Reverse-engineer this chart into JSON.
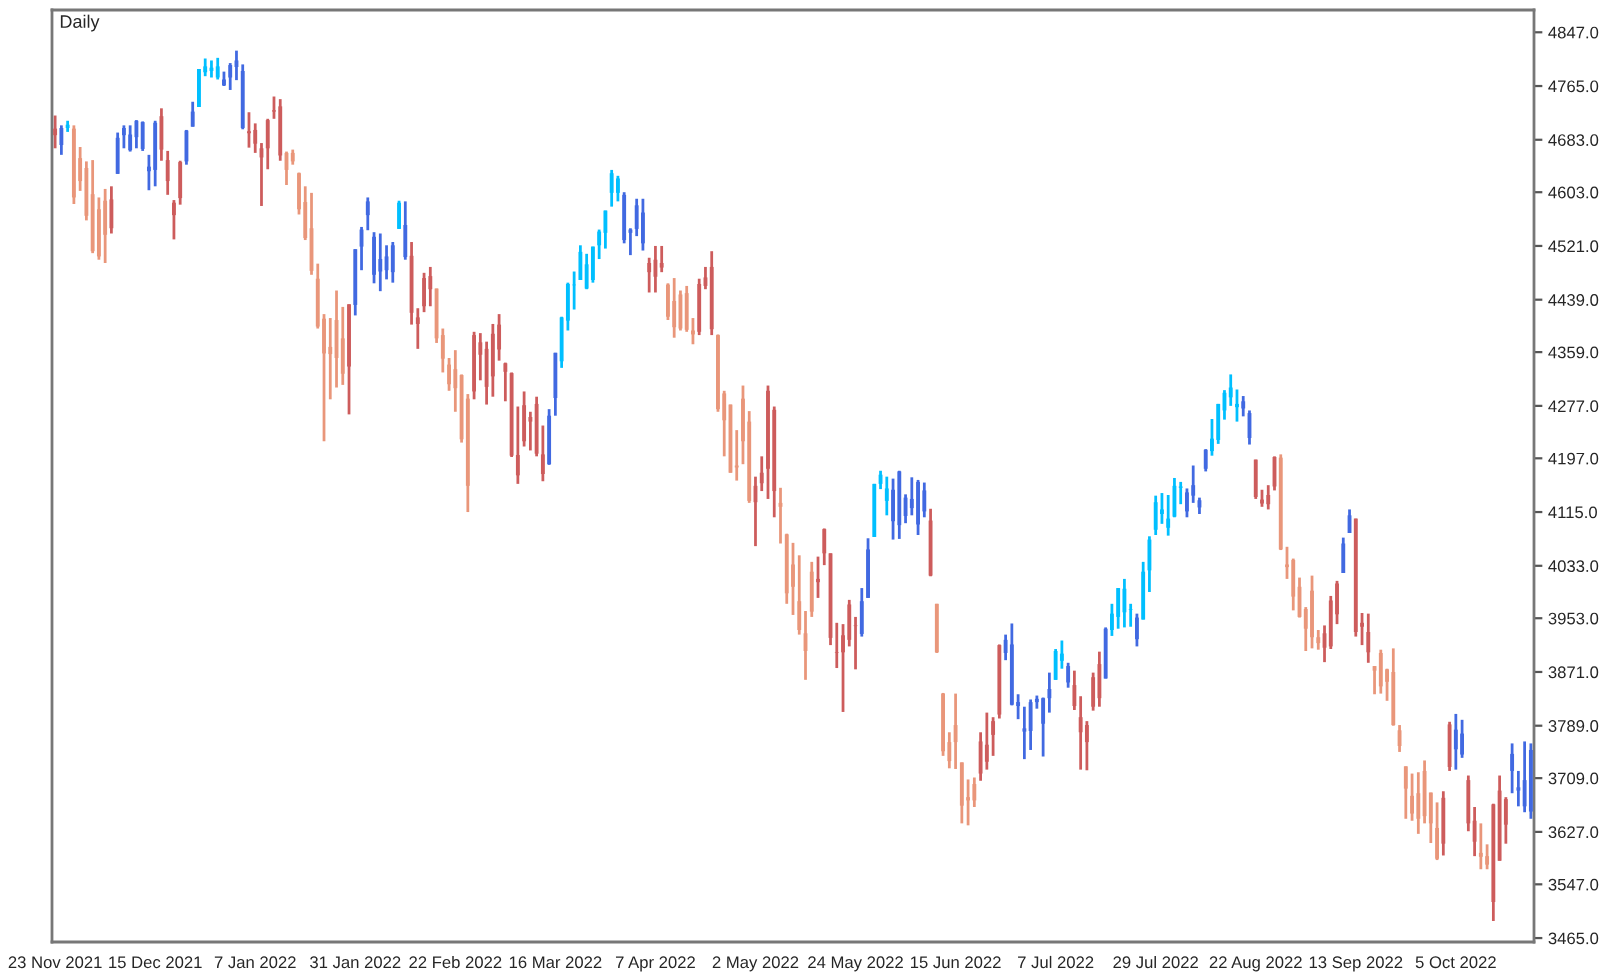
{
  "chart_data": {
    "type": "candlestick",
    "title": "Daily",
    "categories": [
      "23 Nov 2021",
      null,
      null,
      null,
      null,
      null,
      null,
      null,
      null,
      null,
      null,
      null,
      null,
      null,
      null,
      null,
      "15 Dec 2021",
      null,
      null,
      null,
      null,
      null,
      null,
      null,
      null,
      null,
      null,
      null,
      null,
      null,
      null,
      null,
      "7 Jan 2022",
      null,
      null,
      null,
      null,
      null,
      null,
      null,
      null,
      null,
      null,
      null,
      null,
      null,
      null,
      null,
      "31 Jan 2022",
      null,
      null,
      null,
      null,
      null,
      null,
      null,
      null,
      null,
      null,
      null,
      null,
      null,
      null,
      null,
      "22 Feb 2022",
      null,
      null,
      null,
      null,
      null,
      null,
      null,
      null,
      null,
      null,
      null,
      null,
      null,
      null,
      null,
      "16 Mar 2022",
      null,
      null,
      null,
      null,
      null,
      null,
      null,
      null,
      null,
      null,
      null,
      null,
      null,
      null,
      null,
      "7 Apr 2022",
      null,
      null,
      null,
      null,
      null,
      null,
      null,
      null,
      null,
      null,
      null,
      null,
      null,
      null,
      null,
      "2 May 2022",
      null,
      null,
      null,
      null,
      null,
      null,
      null,
      null,
      null,
      null,
      null,
      null,
      null,
      null,
      null,
      "24 May 2022",
      null,
      null,
      null,
      null,
      null,
      null,
      null,
      null,
      null,
      null,
      null,
      null,
      null,
      null,
      null,
      "15 Jun 2022",
      null,
      null,
      null,
      null,
      null,
      null,
      null,
      null,
      null,
      null,
      null,
      null,
      null,
      null,
      null,
      "7 Jul 2022",
      null,
      null,
      null,
      null,
      null,
      null,
      null,
      null,
      null,
      null,
      null,
      null,
      null,
      null,
      null,
      "29 Jul 2022",
      null,
      null,
      null,
      null,
      null,
      null,
      null,
      null,
      null,
      null,
      null,
      null,
      null,
      null,
      null,
      "22 Aug 2022",
      null,
      null,
      null,
      null,
      null,
      null,
      null,
      null,
      null,
      null,
      null,
      null,
      null,
      null,
      null,
      "13 Sep 2022",
      null,
      null,
      null,
      null,
      null,
      null,
      null,
      null,
      null,
      null,
      null,
      null,
      null,
      null,
      null,
      "5 Oct 2022",
      null,
      null,
      null,
      null,
      null,
      null,
      null,
      null,
      null,
      null,
      null,
      null
    ],
    "ohlc": [
      [
        4700,
        4720,
        4670,
        4690
      ],
      [
        4675,
        4705,
        4660,
        4701
      ],
      [
        4701,
        4712,
        4695,
        4706
      ],
      [
        4700,
        4705,
        4585,
        4595
      ],
      [
        4655,
        4672,
        4605,
        4620
      ],
      [
        4640,
        4650,
        4560,
        4567
      ],
      [
        4600,
        4652,
        4510,
        4513
      ],
      [
        4577,
        4595,
        4500,
        4505
      ],
      [
        4590,
        4608,
        4495,
        4538
      ],
      [
        4592,
        4612,
        4540,
        4548
      ],
      [
        4631,
        4694,
        4631,
        4686
      ],
      [
        4690,
        4705,
        4670,
        4701
      ],
      [
        4667,
        4705,
        4665,
        4691
      ],
      [
        4687,
        4713,
        4670,
        4712
      ],
      [
        4669,
        4711,
        4666,
        4710
      ],
      [
        4635,
        4660,
        4606,
        4642
      ],
      [
        4637,
        4712,
        4612,
        4709
      ],
      [
        4719,
        4731,
        4651,
        4668
      ],
      [
        4652,
        4666,
        4599,
        4620
      ],
      [
        4587,
        4591,
        4531,
        4568
      ],
      [
        4649,
        4651,
        4584,
        4594
      ],
      [
        4650,
        4698,
        4645,
        4697
      ],
      [
        4703,
        4741,
        4703,
        4726
      ],
      [
        4733,
        4791,
        4733,
        4791
      ],
      [
        4786,
        4807,
        4780,
        4795
      ],
      [
        4788,
        4804,
        4778,
        4793
      ],
      [
        4778,
        4808,
        4775,
        4795
      ],
      [
        4766,
        4787,
        4765,
        4775
      ],
      [
        4778,
        4800,
        4759,
        4797
      ],
      [
        4794,
        4819,
        4774,
        4804
      ],
      [
        4701,
        4798,
        4699,
        4788
      ],
      [
        4696,
        4725,
        4671,
        4693
      ],
      [
        4698,
        4708,
        4663,
        4677
      ],
      [
        4670,
        4678,
        4582,
        4656
      ],
      [
        4713,
        4715,
        4638,
        4670
      ],
      [
        4728,
        4749,
        4715,
        4726
      ],
      [
        4734,
        4745,
        4651,
        4659
      ],
      [
        4663,
        4665,
        4614,
        4637
      ],
      [
        4663,
        4668,
        4645,
        4650
      ],
      [
        4632,
        4633,
        4569,
        4577
      ],
      [
        4588,
        4612,
        4530,
        4533
      ],
      [
        4548,
        4602,
        4477,
        4483
      ],
      [
        4471,
        4494,
        4395,
        4398
      ],
      [
        4410,
        4417,
        4223,
        4357
      ],
      [
        4367,
        4411,
        4287,
        4356
      ],
      [
        4408,
        4453,
        4305,
        4350
      ],
      [
        4380,
        4428,
        4309,
        4326
      ],
      [
        4432,
        4432,
        4264,
        4337
      ],
      [
        4431,
        4516,
        4415,
        4516
      ],
      [
        4520,
        4550,
        4484,
        4546
      ],
      [
        4568,
        4595,
        4545,
        4589
      ],
      [
        4477,
        4542,
        4464,
        4535
      ],
      [
        4482,
        4540,
        4452,
        4501
      ],
      [
        4484,
        4522,
        4470,
        4505
      ],
      [
        4481,
        4527,
        4465,
        4522
      ],
      [
        4547,
        4590,
        4547,
        4587
      ],
      [
        4504,
        4589,
        4500,
        4553
      ],
      [
        4506,
        4527,
        4401,
        4419
      ],
      [
        4412,
        4426,
        4364,
        4402
      ],
      [
        4472,
        4480,
        4420,
        4429
      ],
      [
        4475,
        4489,
        4429,
        4455
      ],
      [
        4456,
        4456,
        4373,
        4380
      ],
      [
        4385,
        4395,
        4328,
        4349
      ],
      [
        4340,
        4350,
        4300,
        4310
      ],
      [
        4333,
        4362,
        4268,
        4304
      ],
      [
        4324,
        4325,
        4221,
        4226
      ],
      [
        4288,
        4295,
        4115,
        4155
      ],
      [
        4385,
        4390,
        4287,
        4299
      ],
      [
        4374,
        4388,
        4316,
        4355
      ],
      [
        4364,
        4375,
        4279,
        4306
      ],
      [
        4387,
        4402,
        4291,
        4322
      ],
      [
        4401,
        4417,
        4346,
        4363
      ],
      [
        4342,
        4343,
        4284,
        4329
      ],
      [
        4327,
        4328,
        4199,
        4201
      ],
      [
        4202,
        4276,
        4158,
        4171
      ],
      [
        4278,
        4299,
        4215,
        4223
      ],
      [
        4260,
        4268,
        4209,
        4253
      ],
      [
        4280,
        4291,
        4200,
        4204
      ],
      [
        4203,
        4247,
        4162,
        4173
      ],
      [
        4188,
        4272,
        4187,
        4262
      ],
      [
        4289,
        4358,
        4262,
        4358
      ],
      [
        4345,
        4413,
        4335,
        4412
      ],
      [
        4407,
        4465,
        4392,
        4463
      ],
      [
        4461,
        4482,
        4424,
        4462
      ],
      [
        4469,
        4522,
        4469,
        4512
      ],
      [
        4456,
        4509,
        4455,
        4493
      ],
      [
        4469,
        4520,
        4465,
        4520
      ],
      [
        4522,
        4546,
        4501,
        4543
      ],
      [
        4541,
        4575,
        4517,
        4575
      ],
      [
        4602,
        4637,
        4581,
        4632
      ],
      [
        4602,
        4628,
        4589,
        4624
      ],
      [
        4530,
        4603,
        4525,
        4599
      ],
      [
        4541,
        4548,
        4507,
        4546
      ],
      [
        4547,
        4593,
        4536,
        4583
      ],
      [
        4525,
        4593,
        4514,
        4572
      ],
      [
        4495,
        4503,
        4450,
        4481
      ],
      [
        4500,
        4521,
        4450,
        4474
      ],
      [
        4495,
        4521,
        4481,
        4488
      ],
      [
        4462,
        4464,
        4408,
        4413
      ],
      [
        4437,
        4472,
        4381,
        4397
      ],
      [
        4447,
        4453,
        4392,
        4395
      ],
      [
        4449,
        4460,
        4390,
        4393
      ],
      [
        4392,
        4411,
        4371,
        4386
      ],
      [
        4463,
        4471,
        4385,
        4390
      ],
      [
        4473,
        4489,
        4455,
        4460
      ],
      [
        4489,
        4513,
        4385,
        4394
      ],
      [
        4385,
        4386,
        4268,
        4272
      ],
      [
        4296,
        4300,
        4200,
        4255
      ],
      [
        4279,
        4279,
        4175,
        4175
      ],
      [
        4186,
        4240,
        4163,
        4183
      ],
      [
        4288,
        4308,
        4188,
        4223
      ],
      [
        4253,
        4269,
        4129,
        4132
      ],
      [
        4155,
        4169,
        4063,
        4130
      ],
      [
        4175,
        4200,
        4147,
        4159
      ],
      [
        4300,
        4308,
        4135,
        4181
      ],
      [
        4271,
        4276,
        4107,
        4147
      ],
      [
        4129,
        4152,
        4067,
        4123
      ],
      [
        4081,
        4082,
        3975,
        3991
      ],
      [
        4035,
        4068,
        3958,
        4001
      ],
      [
        3979,
        4049,
        3928,
        3935
      ],
      [
        3930,
        3964,
        3859,
        3903
      ],
      [
        4024,
        4039,
        3955,
        3963
      ],
      [
        4013,
        4047,
        3984,
        4008
      ],
      [
        4089,
        4090,
        4034,
        4052
      ],
      [
        4052,
        4052,
        3912,
        3923
      ],
      [
        3901,
        3946,
        3877,
        3900
      ],
      [
        3927,
        3944,
        3810,
        3901
      ],
      [
        3974,
        3981,
        3910,
        3920
      ],
      [
        3942,
        3955,
        3875,
        3941
      ],
      [
        3929,
        3999,
        3925,
        3979
      ],
      [
        3984,
        4075,
        3984,
        4058
      ],
      [
        4077,
        4158,
        4077,
        4158
      ],
      [
        4158,
        4178,
        4150,
        4172
      ],
      [
        4132,
        4169,
        4110,
        4151
      ],
      [
        4101,
        4166,
        4073,
        4149
      ],
      [
        4095,
        4178,
        4074,
        4177
      ],
      [
        4109,
        4142,
        4098,
        4137
      ],
      [
        4121,
        4168,
        4110,
        4135
      ],
      [
        4096,
        4164,
        4080,
        4161
      ],
      [
        4116,
        4160,
        4107,
        4148
      ],
      [
        4102,
        4120,
        4017,
        4018
      ],
      [
        3975,
        3975,
        3900,
        3901
      ],
      [
        3838,
        3839,
        3743,
        3750
      ],
      [
        3764,
        3779,
        3724,
        3735
      ],
      [
        3790,
        3838,
        3723,
        3764
      ],
      [
        3733,
        3733,
        3640,
        3667
      ],
      [
        3680,
        3707,
        3637,
        3675
      ],
      [
        3700,
        3710,
        3665,
        3675
      ],
      [
        3765,
        3779,
        3705,
        3716
      ],
      [
        3760,
        3809,
        3722,
        3734
      ],
      [
        3796,
        3802,
        3743,
        3775
      ],
      [
        3912,
        3913,
        3800,
        3806
      ],
      [
        3900,
        3928,
        3889,
        3920
      ],
      [
        3821,
        3945,
        3820,
        3913
      ],
      [
        3819,
        3837,
        3799,
        3825
      ],
      [
        3780,
        3818,
        3738,
        3785
      ],
      [
        3781,
        3829,
        3752,
        3825
      ],
      [
        3825,
        3835,
        3815,
        3830
      ],
      [
        3792,
        3832,
        3742,
        3831
      ],
      [
        3831,
        3870,
        3809,
        3845
      ],
      [
        3859,
        3906,
        3859,
        3903
      ],
      [
        3888,
        3919,
        3876,
        3899
      ],
      [
        3855,
        3885,
        3847,
        3880
      ],
      [
        3851,
        3873,
        3813,
        3819
      ],
      [
        3802,
        3834,
        3722,
        3779
      ],
      [
        3790,
        3796,
        3721,
        3764
      ],
      [
        3863,
        3870,
        3812,
        3818
      ],
      [
        3883,
        3902,
        3818,
        3831
      ],
      [
        3861,
        3939,
        3861,
        3937
      ],
      [
        3935,
        3975,
        3926,
        3960
      ],
      [
        3955,
        3999,
        3937,
        3999
      ],
      [
        3962,
        4013,
        3939,
        3998
      ],
      [
        3966,
        3975,
        3940,
        3967
      ],
      [
        3921,
        3960,
        3910,
        3954
      ],
      [
        3951,
        4039,
        3951,
        4024
      ],
      [
        4026,
        4078,
        3993,
        4073
      ],
      [
        4088,
        4140,
        4080,
        4130
      ],
      [
        4112,
        4144,
        4097,
        4119
      ],
      [
        4091,
        4141,
        4079,
        4105
      ],
      [
        4108,
        4167,
        4107,
        4155
      ],
      [
        4152,
        4161,
        4127,
        4154
      ],
      [
        4116,
        4151,
        4107,
        4145
      ],
      [
        4140,
        4186,
        4129,
        4156
      ],
      [
        4122,
        4137,
        4112,
        4133
      ],
      [
        4181,
        4211,
        4177,
        4210
      ],
      [
        4208,
        4257,
        4201,
        4227
      ],
      [
        4225,
        4280,
        4219,
        4280
      ],
      [
        4270,
        4301,
        4256,
        4297
      ],
      [
        4290,
        4325,
        4277,
        4305
      ],
      [
        4275,
        4302,
        4253,
        4280
      ],
      [
        4273,
        4292,
        4261,
        4284
      ],
      [
        4228,
        4270,
        4218,
        4266
      ],
      [
        4195,
        4195,
        4135,
        4138
      ],
      [
        4134,
        4149,
        4123,
        4128
      ],
      [
        4141,
        4156,
        4119,
        4127
      ],
      [
        4199,
        4200,
        4148,
        4154
      ],
      [
        4198,
        4203,
        4057,
        4058
      ],
      [
        4035,
        4062,
        4013,
        4031
      ],
      [
        4042,
        4044,
        3965,
        3986
      ],
      [
        4001,
        4015,
        3954,
        3955
      ],
      [
        3967,
        3970,
        3903,
        3937
      ],
      [
        3995,
        4018,
        3907,
        3924
      ],
      [
        3924,
        3935,
        3905,
        3915
      ],
      [
        3930,
        3942,
        3886,
        3908
      ],
      [
        3980,
        3987,
        3906,
        3910
      ],
      [
        4006,
        4010,
        3944,
        3959
      ],
      [
        4022,
        4076,
        4022,
        4067
      ],
      [
        4083,
        4119,
        4083,
        4110
      ],
      [
        4105,
        4105,
        3925,
        3932
      ],
      [
        3946,
        3961,
        3912,
        3940
      ],
      [
        3932,
        3960,
        3885,
        3901
      ],
      [
        3880,
        3880,
        3837,
        3873
      ],
      [
        3900,
        3905,
        3838,
        3849
      ],
      [
        3875,
        3876,
        3827,
        3856
      ],
      [
        3871,
        3907,
        3789,
        3790
      ],
      [
        3782,
        3790,
        3749,
        3758
      ],
      [
        3727,
        3727,
        3647,
        3693
      ],
      [
        3682,
        3716,
        3644,
        3655
      ],
      [
        3686,
        3718,
        3624,
        3647
      ],
      [
        3720,
        3736,
        3640,
        3651
      ],
      [
        3687,
        3687,
        3610,
        3640
      ],
      [
        3633,
        3672,
        3584,
        3586
      ],
      [
        3679,
        3689,
        3591,
        3609
      ],
      [
        3791,
        3795,
        3720,
        3726
      ],
      [
        3753,
        3807,
        3722,
        3783
      ],
      [
        3745,
        3798,
        3740,
        3777
      ],
      [
        3706,
        3713,
        3628,
        3640
      ],
      [
        3644,
        3665,
        3590,
        3612
      ],
      [
        3595,
        3640,
        3570,
        3589
      ],
      [
        3590,
        3608,
        3570,
        3577
      ],
      [
        3669,
        3670,
        3491,
        3520
      ],
      [
        3690,
        3713,
        3583,
        3583
      ],
      [
        3677,
        3680,
        3609,
        3638
      ],
      [
        3720,
        3762,
        3686,
        3746
      ],
      [
        3690,
        3720,
        3666,
        3695
      ],
      [
        3666,
        3765,
        3657,
        3706
      ],
      [
        3658,
        3762,
        3647,
        3752
      ]
    ],
    "colors": [
      "#cd5c5c",
      "#4169e1",
      "#00bfff",
      "#e9967a",
      "#e9967a",
      "#e9967a",
      "#e9967a",
      "#e9967a",
      "#e9967a",
      "#cd5c5c",
      "#4169e1",
      "#4169e1",
      "#4169e1",
      "#4169e1",
      "#4169e1",
      "#4169e1",
      "#4169e1",
      "#cd5c5c",
      "#cd5c5c",
      "#cd5c5c",
      "#cd5c5c",
      "#4169e1",
      "#4169e1",
      "#00bfff",
      "#00bfff",
      "#00bfff",
      "#00bfff",
      "#4169e1",
      "#4169e1",
      "#4169e1",
      "#4169e1",
      "#cd5c5c",
      "#cd5c5c",
      "#cd5c5c",
      "#cd5c5c",
      "#cd5c5c",
      "#cd5c5c",
      "#e9967a",
      "#e9967a",
      "#e9967a",
      "#e9967a",
      "#e9967a",
      "#e9967a",
      "#e9967a",
      "#e9967a",
      "#e9967a",
      "#e9967a",
      "#cd5c5c",
      "#4169e1",
      "#4169e1",
      "#4169e1",
      "#4169e1",
      "#4169e1",
      "#4169e1",
      "#4169e1",
      "#00bfff",
      "#4169e1",
      "#cd5c5c",
      "#cd5c5c",
      "#cd5c5c",
      "#cd5c5c",
      "#e9967a",
      "#e9967a",
      "#e9967a",
      "#e9967a",
      "#e9967a",
      "#e9967a",
      "#cd5c5c",
      "#cd5c5c",
      "#cd5c5c",
      "#cd5c5c",
      "#cd5c5c",
      "#cd5c5c",
      "#cd5c5c",
      "#cd5c5c",
      "#cd5c5c",
      "#cd5c5c",
      "#cd5c5c",
      "#cd5c5c",
      "#4169e1",
      "#4169e1",
      "#00bfff",
      "#00bfff",
      "#00bfff",
      "#00bfff",
      "#00bfff",
      "#00bfff",
      "#00bfff",
      "#00bfff",
      "#00bfff",
      "#00bfff",
      "#4169e1",
      "#4169e1",
      "#4169e1",
      "#4169e1",
      "#cd5c5c",
      "#cd5c5c",
      "#cd5c5c",
      "#e9967a",
      "#e9967a",
      "#e9967a",
      "#e9967a",
      "#e9967a",
      "#cd5c5c",
      "#cd5c5c",
      "#cd5c5c",
      "#e9967a",
      "#e9967a",
      "#e9967a",
      "#e9967a",
      "#e9967a",
      "#e9967a",
      "#cd5c5c",
      "#cd5c5c",
      "#cd5c5c",
      "#cd5c5c",
      "#e9967a",
      "#e9967a",
      "#e9967a",
      "#e9967a",
      "#e9967a",
      "#e9967a",
      "#cd5c5c",
      "#cd5c5c",
      "#cd5c5c",
      "#cd5c5c",
      "#cd5c5c",
      "#cd5c5c",
      "#cd5c5c",
      "#4169e1",
      "#4169e1",
      "#00bfff",
      "#00bfff",
      "#00bfff",
      "#4169e1",
      "#4169e1",
      "#4169e1",
      "#4169e1",
      "#4169e1",
      "#4169e1",
      "#cd5c5c",
      "#e9967a",
      "#e9967a",
      "#e9967a",
      "#e9967a",
      "#e9967a",
      "#e9967a",
      "#e9967a",
      "#cd5c5c",
      "#cd5c5c",
      "#cd5c5c",
      "#cd5c5c",
      "#4169e1",
      "#4169e1",
      "#4169e1",
      "#4169e1",
      "#4169e1",
      "#4169e1",
      "#4169e1",
      "#4169e1",
      "#00bfff",
      "#00bfff",
      "#4169e1",
      "#cd5c5c",
      "#cd5c5c",
      "#cd5c5c",
      "#cd5c5c",
      "#cd5c5c",
      "#4169e1",
      "#00bfff",
      "#00bfff",
      "#00bfff",
      "#00bfff",
      "#4169e1",
      "#00bfff",
      "#00bfff",
      "#00bfff",
      "#00bfff",
      "#00bfff",
      "#00bfff",
      "#00bfff",
      "#4169e1",
      "#4169e1",
      "#4169e1",
      "#4169e1",
      "#00bfff",
      "#00bfff",
      "#00bfff",
      "#00bfff",
      "#00bfff",
      "#4169e1",
      "#4169e1",
      "#cd5c5c",
      "#cd5c5c",
      "#cd5c5c",
      "#cd5c5c",
      "#e9967a",
      "#e9967a",
      "#e9967a",
      "#e9967a",
      "#e9967a",
      "#e9967a",
      "#e9967a",
      "#cd5c5c",
      "#cd5c5c",
      "#cd5c5c",
      "#4169e1",
      "#4169e1",
      "#cd5c5c",
      "#cd5c5c",
      "#cd5c5c",
      "#e9967a",
      "#e9967a",
      "#e9967a",
      "#e9967a",
      "#e9967a",
      "#e9967a",
      "#e9967a",
      "#e9967a",
      "#e9967a",
      "#e9967a",
      "#e9967a",
      "#cd5c5c",
      "#cd5c5c",
      "#4169e1",
      "#4169e1",
      "#cd5c5c",
      "#cd5c5c",
      "#e9967a",
      "#e9967a",
      "#cd5c5c",
      "#cd5c5c",
      "#cd5c5c",
      "#4169e1",
      "#4169e1",
      "#4169e1",
      "#4169e1"
    ],
    "ylim": [
      3459,
      4881
    ],
    "yticks": [
      {
        "value": 4847,
        "label": "4847.0"
      },
      {
        "value": 4765,
        "label": "4765.0"
      },
      {
        "value": 4683,
        "label": "4683.0"
      },
      {
        "value": 4603,
        "label": "4603.0"
      },
      {
        "value": 4521,
        "label": "4521.0"
      },
      {
        "value": 4439,
        "label": "4439.0"
      },
      {
        "value": 4359,
        "label": "4359.0"
      },
      {
        "value": 4277,
        "label": "4277.0"
      },
      {
        "value": 4197,
        "label": "4197.0"
      },
      {
        "value": 4115,
        "label": "4115.0"
      },
      {
        "value": 4033,
        "label": "4033.0"
      },
      {
        "value": 3953,
        "label": "3953.0"
      },
      {
        "value": 3871,
        "label": "3871.0"
      },
      {
        "value": 3789,
        "label": "3789.0"
      },
      {
        "value": 3709,
        "label": "3709.0"
      },
      {
        "value": 3627,
        "label": "3627.0"
      },
      {
        "value": 3547,
        "label": "3547.0"
      },
      {
        "value": 3465,
        "label": "3465.0"
      }
    ]
  }
}
